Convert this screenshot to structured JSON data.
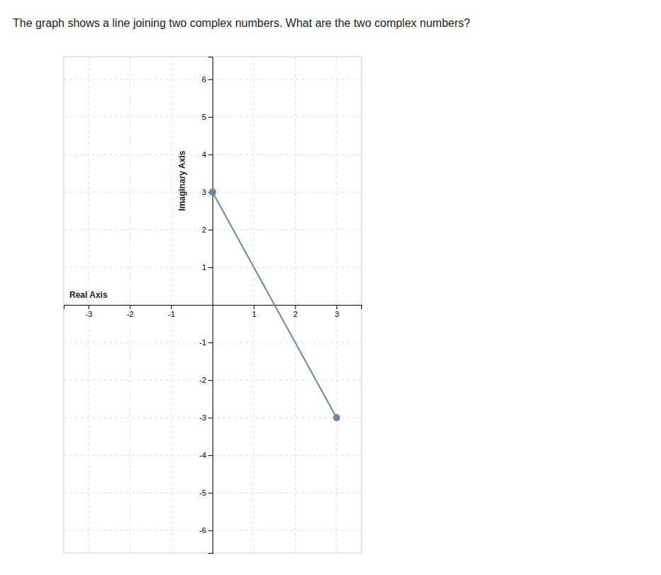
{
  "chart_data": {
    "type": "line",
    "title": "The graph shows a line joining two complex numbers. What are the two complex numbers?",
    "xlabel": "Real Axis",
    "ylabel": "Imaginary Axis",
    "x": [
      0,
      3
    ],
    "values": [
      3,
      -3
    ],
    "color": "#6688aa",
    "marker": "circle",
    "xlim": [
      -3.6,
      3.6
    ],
    "ylim": [
      -6.6,
      6.6
    ],
    "xticks": [
      -3,
      -2,
      -1,
      1,
      2,
      3
    ],
    "yticks": [
      -6,
      -5,
      -4,
      -3,
      -2,
      -1,
      1,
      2,
      3,
      4,
      5,
      6
    ],
    "grid": true
  }
}
